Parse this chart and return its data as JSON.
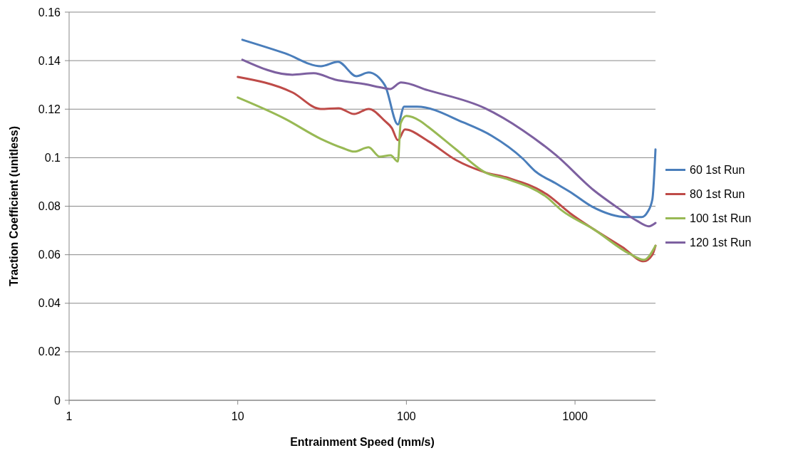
{
  "chart_data": {
    "type": "line",
    "xlabel": "Entrainment Speed (mm/s)",
    "ylabel": "Traction Coefficient (unitless)",
    "log": "x",
    "grid": "y",
    "legend": "right",
    "marker": "none",
    "line_style": "solid",
    "xlim": [
      1,
      3000
    ],
    "xticks": [
      1,
      10,
      100,
      1000
    ],
    "ylim": [
      0,
      0.16
    ],
    "yticks": [
      0,
      0.02,
      0.04,
      0.06,
      0.08,
      {
        "value": 0.1,
        "label": "0.1"
      },
      0.12,
      0.14,
      0.16
    ],
    "series": [
      {
        "name": "60 1st Run",
        "color": "#4a7ebb",
        "x": [
          10.65,
          19.1,
          31.1,
          39.3,
          50.6,
          59.7,
          74.6,
          89,
          97,
          115.7,
          218,
          321,
          490,
          577,
          773,
          939,
          1257,
          2047,
          2485,
          2686,
          2874,
          3000
        ],
        "values": [
          0.1486,
          0.143,
          0.1377,
          0.1395,
          0.1336,
          0.1351,
          0.1298,
          0.1137,
          0.121,
          0.121,
          0.1145,
          0.109,
          0.0996,
          0.0946,
          0.0893,
          0.0858,
          0.0799,
          0.0755,
          0.0755,
          0.0775,
          0.0828,
          0.1034
        ]
      },
      {
        "name": "80 1st Run",
        "color": "#be4b48",
        "x": [
          10,
          21.1,
          31,
          39.6,
          49,
          59.7,
          74.6,
          82,
          89,
          98,
          134,
          197,
          292,
          404,
          680,
          939,
          1290,
          1910,
          2560,
          2870,
          3000
        ],
        "values": [
          0.1333,
          0.1269,
          0.1201,
          0.1204,
          0.118,
          0.1201,
          0.1151,
          0.1122,
          0.1072,
          0.1116,
          0.1069,
          0.099,
          0.094,
          0.0916,
          0.0849,
          0.077,
          0.0705,
          0.0631,
          0.0573,
          0.0599,
          0.0637
        ]
      },
      {
        "name": "100 1st Run",
        "color": "#98b954",
        "x": [
          10,
          19.1,
          31,
          41.8,
          49,
          59.7,
          69.5,
          80.6,
          89,
          92.5,
          100,
          121,
          134,
          197,
          292,
          404,
          680,
          829,
          1290,
          2130,
          2560,
          3000
        ],
        "values": [
          0.1248,
          0.116,
          0.1078,
          0.104,
          0.1025,
          0.1043,
          0.1004,
          0.101,
          0.0984,
          0.1142,
          0.1172,
          0.1151,
          0.1128,
          0.1034,
          0.094,
          0.091,
          0.0837,
          0.0784,
          0.0705,
          0.0602,
          0.0579,
          0.0637
        ]
      },
      {
        "name": "120 1st Run",
        "color": "#7d60a0",
        "x": [
          10.65,
          21.1,
          28.2,
          37.7,
          55.7,
          74.6,
          80,
          93,
          134,
          292,
          490,
          772,
          1290,
          1795,
          2325,
          2740,
          3000
        ],
        "values": [
          0.1404,
          0.1342,
          0.1348,
          0.1322,
          0.1304,
          0.1286,
          0.1283,
          0.131,
          0.1278,
          0.1204,
          0.1113,
          0.101,
          0.0866,
          0.0793,
          0.074,
          0.0717,
          0.0731
        ]
      }
    ]
  }
}
